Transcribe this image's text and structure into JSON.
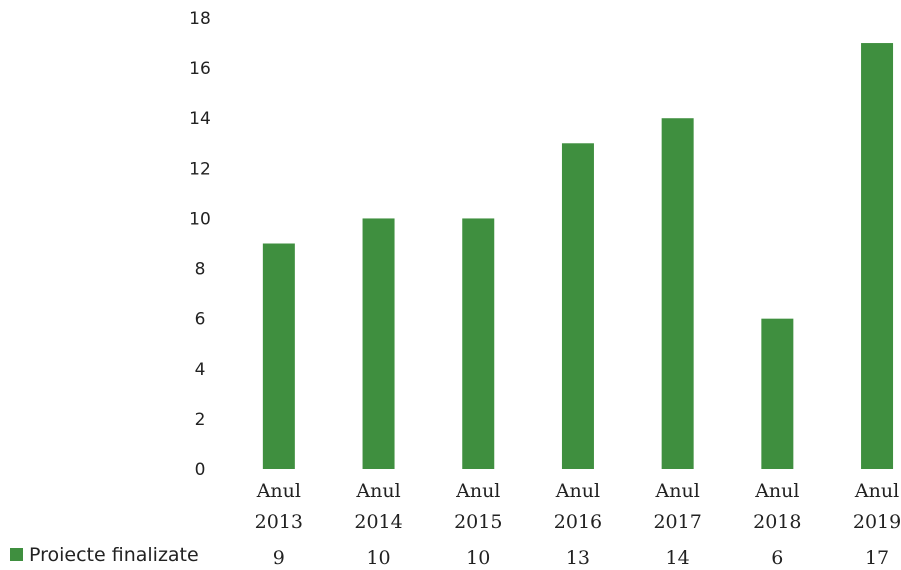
{
  "chart_data": {
    "type": "bar",
    "categories": [
      [
        "Anul",
        "2013"
      ],
      [
        "Anul",
        "2014"
      ],
      [
        "Anul",
        "2015"
      ],
      [
        "Anul",
        "2016"
      ],
      [
        "Anul",
        "2017"
      ],
      [
        "Anul",
        "2018"
      ],
      [
        "Anul",
        "2019"
      ]
    ],
    "series": [
      {
        "name": "Proiecte finalizate",
        "values": [
          9,
          10,
          10,
          13,
          14,
          6,
          17
        ],
        "color": "#3f8f3f"
      }
    ],
    "ylim": [
      0,
      18
    ],
    "yticks": [
      0,
      2,
      4,
      6,
      8,
      10,
      12,
      14,
      16,
      18
    ],
    "grid": false,
    "legend": "bottom-left, as data table row"
  }
}
